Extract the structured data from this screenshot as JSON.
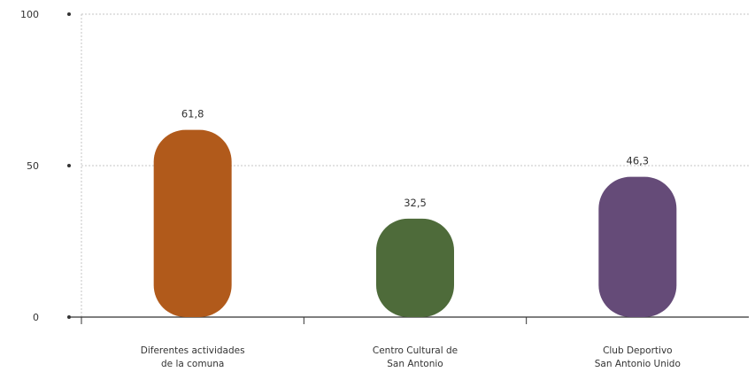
{
  "chart_data": {
    "type": "bar",
    "categories": [
      [
        "Diferentes actividades",
        "de la comuna"
      ],
      [
        "Centro Cultural de",
        "San Antonio"
      ],
      [
        "Club Deportivo",
        "San Antonio Unido"
      ]
    ],
    "values": [
      61.8,
      32.5,
      46.3
    ],
    "value_labels": [
      "61,8",
      "32,5",
      "46,3"
    ],
    "colors": [
      "#B15A1B",
      "#4E6B3A",
      "#654B78"
    ],
    "yticks": [
      0,
      50,
      100
    ],
    "ytick_labels": [
      "0",
      "50",
      "100"
    ],
    "ylim": [
      0,
      100
    ],
    "grid": true,
    "title": "",
    "xlabel": "",
    "ylabel": ""
  }
}
